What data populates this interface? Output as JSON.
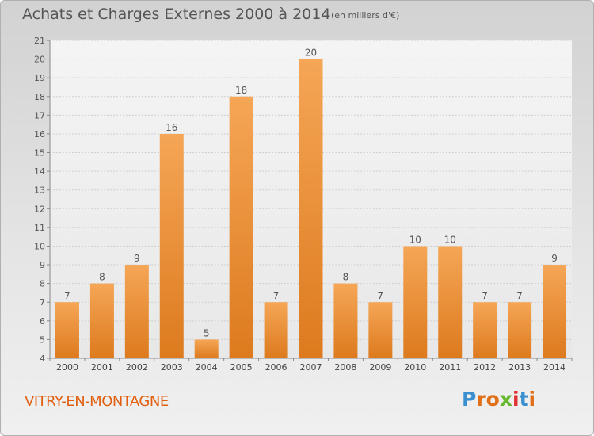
{
  "header": {
    "title": "Achats et Charges Externes 2000 à 2014",
    "subtitle": "(en milliers d'€)"
  },
  "footer": {
    "city": "VITRY-EN-MONTAGNE",
    "logo_text": "Proxiti"
  },
  "colors": {
    "bar_top": "#f5a656",
    "bar_bottom": "#dd7a1e",
    "city_text": "#e06010",
    "logo_letters": [
      "#3a8fd0",
      "#e0701a",
      "#e0701a",
      "#68b830",
      "#e03030",
      "#3a8fd0",
      "#e0701a"
    ]
  },
  "chart_data": {
    "type": "bar",
    "title": "Achats et Charges Externes 2000 à 2014",
    "subtitle": "(en milliers d'€)",
    "categories": [
      "2000",
      "2001",
      "2002",
      "2003",
      "2004",
      "2005",
      "2006",
      "2007",
      "2008",
      "2009",
      "2010",
      "2011",
      "2012",
      "2013",
      "2014"
    ],
    "values": [
      7,
      8,
      9,
      16,
      5,
      18,
      7,
      20,
      8,
      7,
      10,
      10,
      7,
      7,
      9
    ],
    "ylim": [
      4,
      21
    ],
    "yticks": [
      4,
      5,
      6,
      7,
      8,
      9,
      10,
      11,
      12,
      13,
      14,
      15,
      16,
      17,
      18,
      19,
      20,
      21
    ],
    "grid": true,
    "xlabel": "",
    "ylabel": ""
  }
}
